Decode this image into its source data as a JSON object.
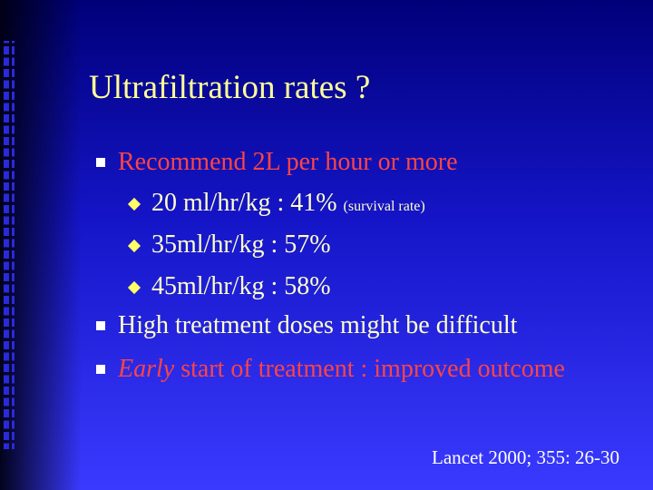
{
  "title": "Ultrafiltration rates ?",
  "bullets": [
    {
      "text": "Recommend 2L per hour or more",
      "sub_bullets": [
        {
          "text": "20 ml/hr/kg : 41%",
          "note": "(survival rate)"
        },
        {
          "text": "35ml/hr/kg : 57%"
        },
        {
          "text": "45ml/hr/kg : 58%"
        }
      ]
    },
    {
      "text": "High treatment doses might be difficult"
    },
    {
      "emphasis": "Early",
      "text": "start of treatment : improved outcome"
    }
  ],
  "footer": "Lancet 2000; 355: 26-30"
}
